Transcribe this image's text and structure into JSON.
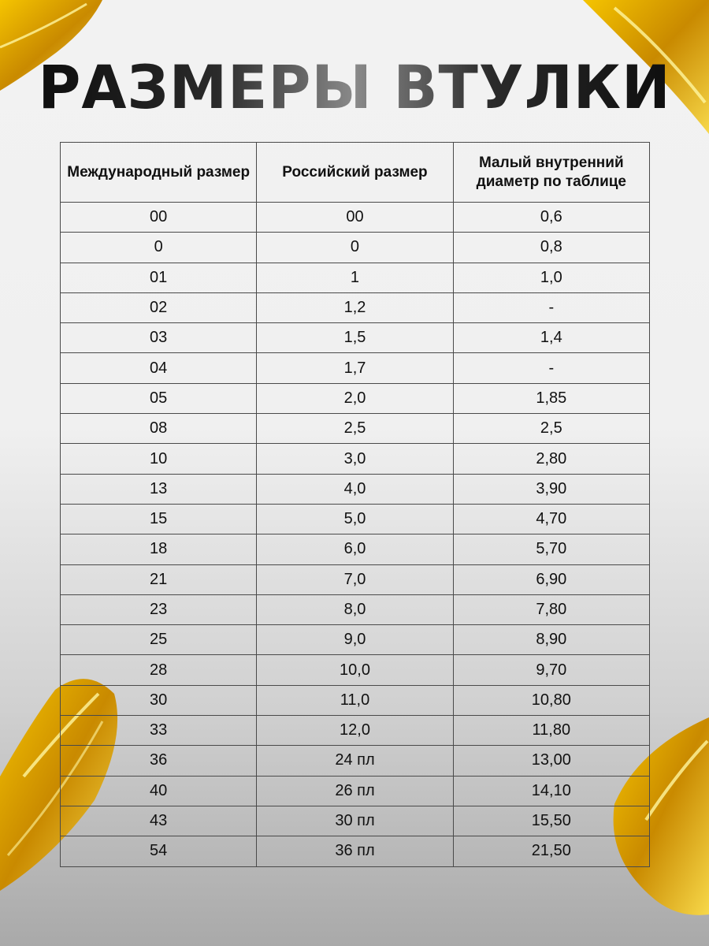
{
  "title": "РАЗМЕРЫ ВТУЛКИ",
  "accent_color": "#e3a400",
  "table": {
    "headers": [
      "Международный размер",
      "Российский размер",
      "Малый внутренний диаметр по таблице"
    ],
    "rows": [
      [
        "00",
        "00",
        "0,6"
      ],
      [
        "0",
        "0",
        "0,8"
      ],
      [
        "01",
        "1",
        "1,0"
      ],
      [
        "02",
        "1,2",
        "-"
      ],
      [
        "03",
        "1,5",
        "1,4"
      ],
      [
        "04",
        "1,7",
        "-"
      ],
      [
        "05",
        "2,0",
        "1,85"
      ],
      [
        "08",
        "2,5",
        "2,5"
      ],
      [
        "10",
        "3,0",
        "2,80"
      ],
      [
        "13",
        "4,0",
        "3,90"
      ],
      [
        "15",
        "5,0",
        "4,70"
      ],
      [
        "18",
        "6,0",
        "5,70"
      ],
      [
        "21",
        "7,0",
        "6,90"
      ],
      [
        "23",
        "8,0",
        "7,80"
      ],
      [
        "25",
        "9,0",
        "8,90"
      ],
      [
        "28",
        "10,0",
        "9,70"
      ],
      [
        "30",
        "11,0",
        "10,80"
      ],
      [
        "33",
        "12,0",
        "11,80"
      ],
      [
        "36",
        "24 пл",
        "13,00"
      ],
      [
        "40",
        "26 пл",
        "14,10"
      ],
      [
        "43",
        "30 пл",
        "15,50"
      ],
      [
        "54",
        "36 пл",
        "21,50"
      ]
    ]
  }
}
